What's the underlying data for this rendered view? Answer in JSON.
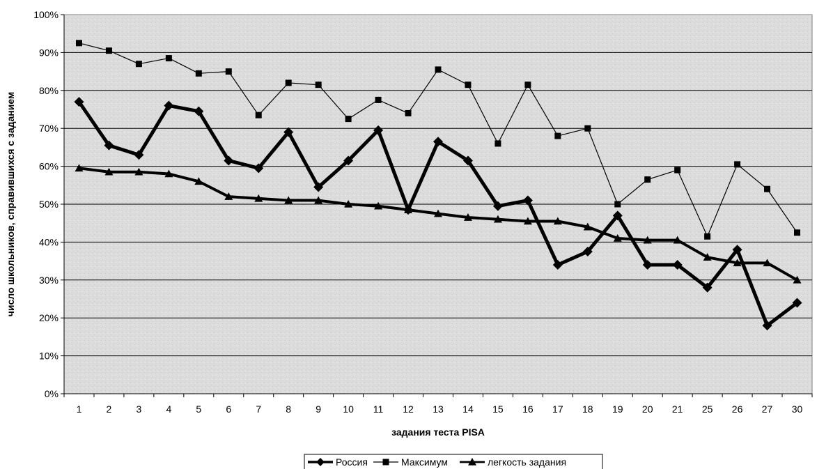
{
  "chart_data": {
    "type": "line",
    "title": "",
    "xlabel": "задания теста PISA",
    "ylabel": "число школьников, справившихся с заданием",
    "ylim": [
      0,
      100
    ],
    "y_ticks": [
      "0%",
      "10%",
      "20%",
      "30%",
      "40%",
      "50%",
      "60%",
      "70%",
      "80%",
      "90%",
      "100%"
    ],
    "categories": [
      "1",
      "2",
      "3",
      "4",
      "5",
      "6",
      "7",
      "8",
      "9",
      "10",
      "11",
      "12",
      "13",
      "14",
      "15",
      "16",
      "17",
      "18",
      "19",
      "20",
      "21",
      "25",
      "26",
      "27",
      "30"
    ],
    "grid": true,
    "legend_position": "bottom",
    "series": [
      {
        "name": "Россия",
        "marker": "diamond",
        "color": "#000000",
        "values": [
          77,
          65.5,
          63,
          76,
          74.5,
          61.5,
          59.5,
          69,
          54.5,
          61.5,
          69.5,
          48.5,
          66.5,
          61.5,
          49.5,
          51,
          34,
          37.5,
          47,
          34,
          34,
          28,
          38,
          18,
          24
        ]
      },
      {
        "name": "Максимум",
        "marker": "square",
        "color": "#000000",
        "values": [
          92.5,
          90.5,
          87,
          88.5,
          84.5,
          85,
          73.5,
          82,
          81.5,
          72.5,
          77.5,
          74,
          85.5,
          81.5,
          66,
          81.5,
          68,
          70,
          50,
          56.5,
          59,
          41.5,
          60.5,
          54,
          42.5
        ]
      },
      {
        "name": "легкость задания",
        "marker": "triangle",
        "color": "#000000",
        "values": [
          59.5,
          58.5,
          58.5,
          58,
          56,
          52,
          51.5,
          51,
          51,
          50,
          49.5,
          48.5,
          47.5,
          46.5,
          46,
          45.5,
          45.5,
          44,
          41,
          40.5,
          40.5,
          36,
          34.5,
          34.5,
          30
        ]
      }
    ]
  }
}
